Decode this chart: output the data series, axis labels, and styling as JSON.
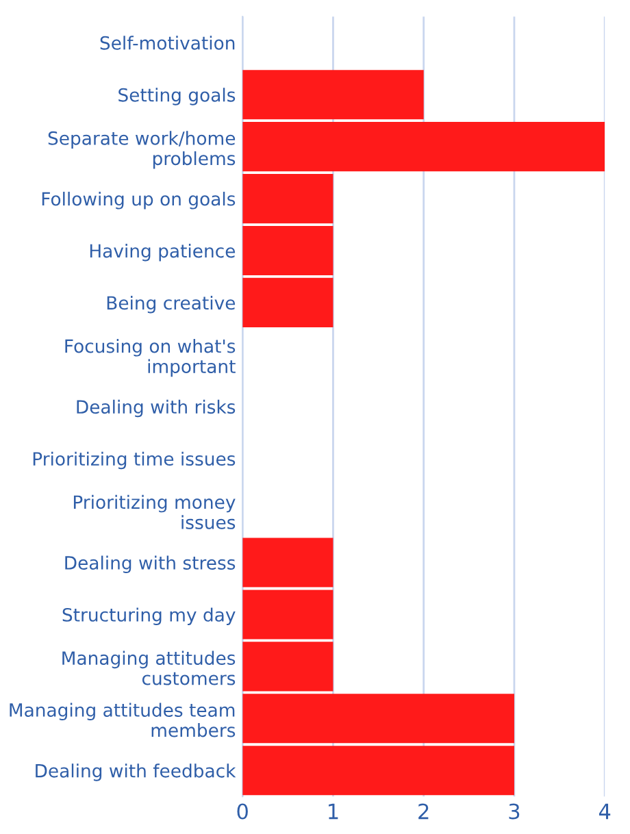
{
  "chart_data": {
    "type": "bar",
    "orientation": "horizontal",
    "categories": [
      "Self-motivation",
      "Setting goals",
      "Separate work/home\nproblems",
      "Following up on goals",
      "Having patience",
      "Being creative",
      "Focusing on what's\nimportant",
      "Dealing with risks",
      "Prioritizing time issues",
      "Prioritizing money\nissues",
      "Dealing with stress",
      "Structuring my day",
      "Managing attitudes\ncustomers",
      "Managing attitudes team\nmembers",
      "Dealing with feedback"
    ],
    "values": [
      0,
      2,
      4,
      1,
      1,
      1,
      0,
      0,
      0,
      0,
      1,
      1,
      1,
      3,
      3
    ],
    "color": "#ff1a1a",
    "xlim": [
      0,
      4
    ],
    "xticks": [
      0,
      1,
      2,
      3,
      4
    ],
    "grid": "x"
  }
}
